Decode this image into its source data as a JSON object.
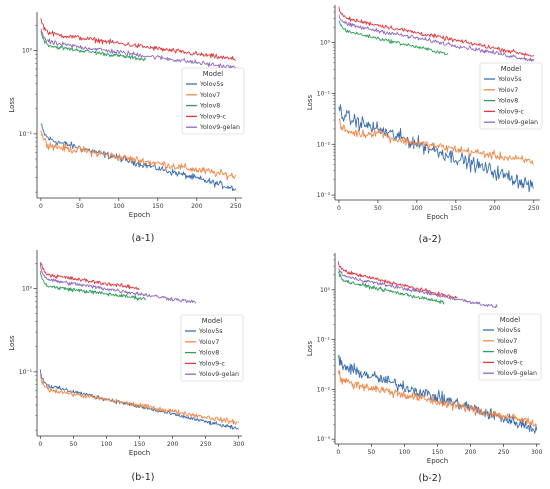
{
  "legend_title": "Model",
  "series_colors": {
    "Yolov5s": "#3b6fb0",
    "Yolov7": "#f08a4b",
    "Yolov8": "#2e9e5b",
    "Yolov9-c": "#e03a3e",
    "Yolov9-gelan": "#8e6bbf"
  },
  "chart_data": [
    {
      "id": "a-1",
      "type": "line",
      "caption": "(a-1)",
      "xlabel": "Epoch",
      "ylabel": "Loss",
      "yscale": "log",
      "xlim": [
        -5,
        258
      ],
      "ylim": [
        0.017,
        2.9
      ],
      "xticks": [
        0,
        50,
        100,
        150,
        200,
        250
      ],
      "yticks": [
        {
          "v": 1,
          "label": "10⁰"
        },
        {
          "v": 0.1,
          "label": "10⁻¹"
        }
      ],
      "legend_position": "center-right",
      "series": [
        {
          "name": "Yolov5s",
          "epochs": 250,
          "start": 0.12,
          "end": 0.022,
          "noise": 0.035
        },
        {
          "name": "Yolov7",
          "epochs": 250,
          "start": 0.1,
          "end": 0.031,
          "noise": 0.04,
          "bump": [
            50,
            0.065
          ]
        },
        {
          "name": "Yolov8",
          "epochs": 135,
          "start": 1.55,
          "end": 0.78,
          "noise": 0.02
        },
        {
          "name": "Yolov9-c",
          "epochs": 250,
          "start": 2.2,
          "end": 0.78,
          "noise": 0.025
        },
        {
          "name": "Yolov9-gelan",
          "epochs": 250,
          "start": 1.7,
          "end": 0.62,
          "noise": 0.025
        }
      ]
    },
    {
      "id": "a-2",
      "type": "line",
      "caption": "(a-2)",
      "xlabel": "Epoch",
      "ylabel": "Loss",
      "yscale": "log",
      "xlim": [
        -5,
        258
      ],
      "ylim": [
        0.0008,
        5.5
      ],
      "xticks": [
        0,
        50,
        100,
        150,
        200,
        250
      ],
      "yticks": [
        {
          "v": 1,
          "label": "10⁰"
        },
        {
          "v": 0.1,
          "label": "10⁻¹"
        },
        {
          "v": 0.01,
          "label": "10⁻²"
        },
        {
          "v": 0.001,
          "label": "10⁻³"
        }
      ],
      "legend_position": "center-right",
      "series": [
        {
          "name": "Yolov5s",
          "epochs": 250,
          "start": 0.05,
          "end": 0.0015,
          "noise": 0.12
        },
        {
          "name": "Yolov7",
          "epochs": 250,
          "start": 0.025,
          "end": 0.0045,
          "noise": 0.07,
          "bump": [
            50,
            0.02
          ]
        },
        {
          "name": "Yolov8",
          "epochs": 140,
          "start": 2.4,
          "end": 0.6,
          "noise": 0.03
        },
        {
          "name": "Yolov9-c",
          "epochs": 250,
          "start": 4.2,
          "end": 0.55,
          "noise": 0.035
        },
        {
          "name": "Yolov9-gelan",
          "epochs": 250,
          "start": 3.2,
          "end": 0.45,
          "noise": 0.035
        }
      ]
    },
    {
      "id": "b-1",
      "type": "line",
      "caption": "(b-1)",
      "xlabel": "Epoch",
      "ylabel": "Loss",
      "yscale": "log",
      "xlim": [
        -5,
        305
      ],
      "ylim": [
        0.017,
        2.9
      ],
      "xticks": [
        0,
        50,
        100,
        150,
        200,
        250,
        300
      ],
      "yticks": [
        {
          "v": 1,
          "label": "10⁰"
        },
        {
          "v": 0.1,
          "label": "10⁻¹"
        }
      ],
      "legend_position": "center-right",
      "series": [
        {
          "name": "Yolov5s",
          "epochs": 300,
          "start": 0.095,
          "end": 0.0205,
          "noise": 0.02
        },
        {
          "name": "Yolov7",
          "epochs": 300,
          "start": 0.085,
          "end": 0.0245,
          "noise": 0.025
        },
        {
          "name": "Yolov8",
          "epochs": 160,
          "start": 1.45,
          "end": 0.75,
          "noise": 0.02
        },
        {
          "name": "Yolov9-c",
          "epochs": 150,
          "start": 2.0,
          "end": 1.0,
          "noise": 0.02
        },
        {
          "name": "Yolov9-gelan",
          "epochs": 235,
          "start": 1.75,
          "end": 0.68,
          "noise": 0.02
        }
      ]
    },
    {
      "id": "b-2",
      "type": "line",
      "caption": "(b-2)",
      "xlabel": "Epoch",
      "ylabel": "Loss",
      "yscale": "log",
      "xlim": [
        -5,
        305
      ],
      "ylim": [
        0.0008,
        5.5
      ],
      "xticks": [
        0,
        50,
        100,
        150,
        200,
        250,
        300
      ],
      "yticks": [
        {
          "v": 1,
          "label": "10⁰"
        },
        {
          "v": 0.1,
          "label": "10⁻¹"
        },
        {
          "v": 0.01,
          "label": "10⁻²"
        },
        {
          "v": 0.001,
          "label": "10⁻³"
        }
      ],
      "legend_position": "center-right",
      "series": [
        {
          "name": "Yolov5s",
          "epochs": 300,
          "start": 0.04,
          "end": 0.0016,
          "noise": 0.1
        },
        {
          "name": "Yolov7",
          "epochs": 300,
          "start": 0.02,
          "end": 0.0021,
          "noise": 0.08
        },
        {
          "name": "Yolov8",
          "epochs": 160,
          "start": 2.1,
          "end": 0.55,
          "noise": 0.03
        },
        {
          "name": "Yolov9-c",
          "epochs": 180,
          "start": 3.3,
          "end": 0.68,
          "noise": 0.03
        },
        {
          "name": "Yolov9-gelan",
          "epochs": 240,
          "start": 2.6,
          "end": 0.45,
          "noise": 0.03
        }
      ]
    }
  ]
}
